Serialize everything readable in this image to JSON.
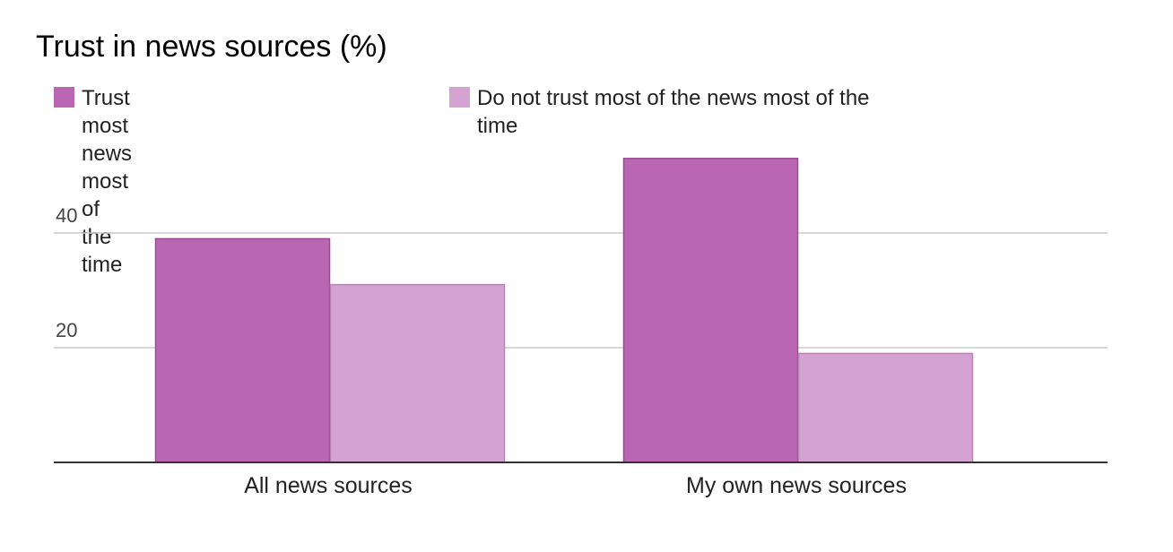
{
  "chart_data": {
    "type": "bar",
    "title": "Trust in news sources (%)",
    "categories": [
      "All news sources",
      "My own news sources"
    ],
    "series": [
      {
        "name": "Trust most news most of the time",
        "values": [
          39,
          53
        ],
        "color": "#b967b2"
      },
      {
        "name": "Do not trust most of the news most of the time",
        "values": [
          31,
          19
        ],
        "color": "#d4a3d1"
      }
    ],
    "yticks": [
      20,
      40
    ],
    "ylim": [
      0,
      60
    ],
    "grid": true,
    "legend_position": "top"
  }
}
